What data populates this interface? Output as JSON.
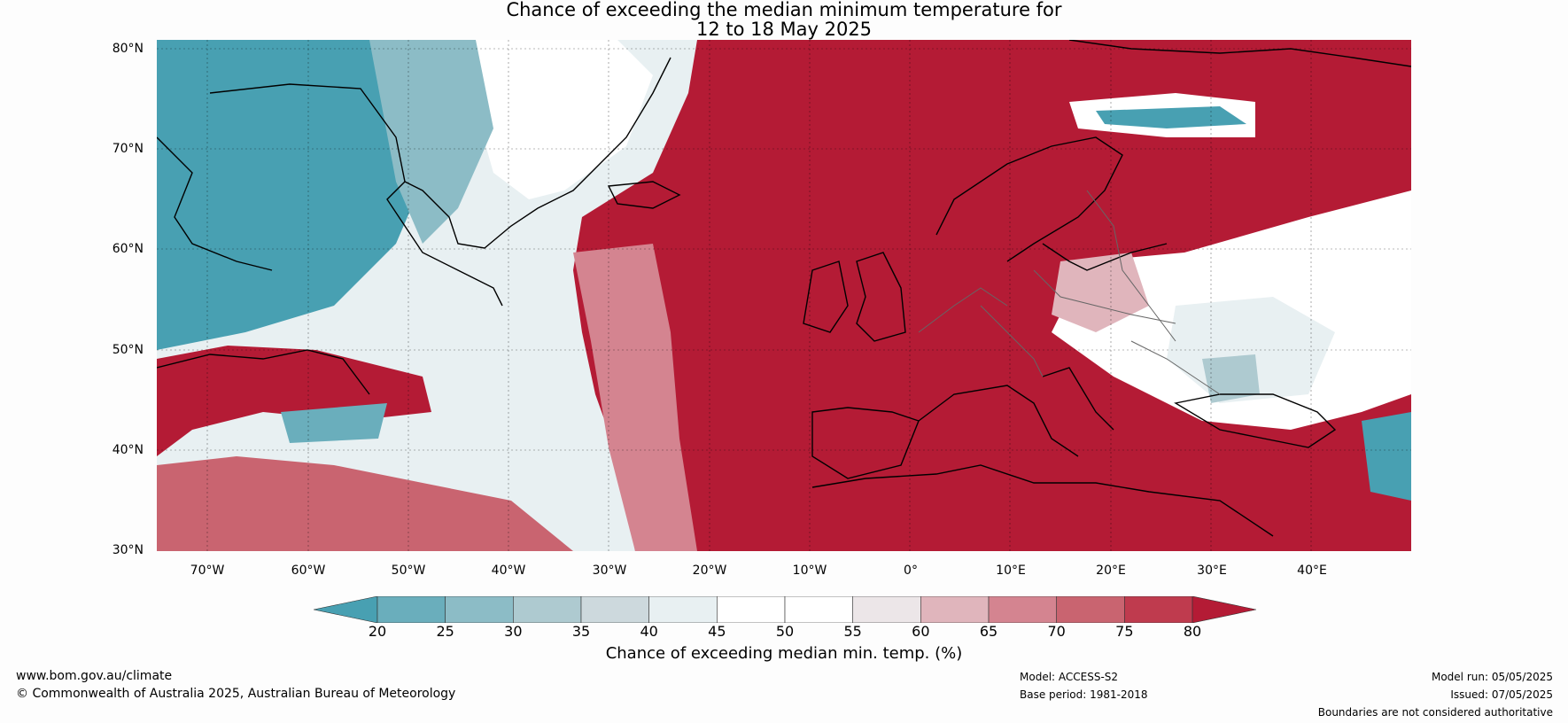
{
  "title": {
    "line1": "Chance of exceeding the median minimum temperature for",
    "line2": "12 to 18 May 2025"
  },
  "map": {
    "lat_labels": [
      "80°N",
      "70°N",
      "60°N",
      "50°N",
      "40°N",
      "30°N"
    ],
    "lon_labels": [
      "70°W",
      "60°W",
      "50°W",
      "40°W",
      "30°W",
      "20°W",
      "10°W",
      "0°",
      "10°E",
      "20°E",
      "30°E",
      "40°E"
    ],
    "colors": {
      "high": "#b41b35",
      "low": "#48a0b2",
      "neutral": "#ffffff"
    }
  },
  "colorbar": {
    "ticks": [
      "20",
      "25",
      "30",
      "35",
      "40",
      "45",
      "50",
      "55",
      "60",
      "65",
      "70",
      "75",
      "80"
    ],
    "colors": [
      "#48a0b2",
      "#6aaebc",
      "#8cbcc6",
      "#aecad0",
      "#cdd9dd",
      "#e8f0f2",
      "#ffffff",
      "#ffffff",
      "#ece6e8",
      "#e0b5bc",
      "#d48490",
      "#c96470",
      "#bf3b4e",
      "#b41b35"
    ],
    "label": "Chance of exceeding median min. temp. (%)"
  },
  "footer": {
    "website": "www.bom.gov.au/climate",
    "copyright": "© Commonwealth of Australia 2025, Australian Bureau of Meteorology",
    "model": "Model: ACCESS-S2",
    "base_period": "Base period: 1981-2018",
    "model_run": "Model run: 05/05/2025",
    "issued": "Issued: 07/05/2025",
    "disclaimer": "Boundaries are not considered authoritative"
  }
}
